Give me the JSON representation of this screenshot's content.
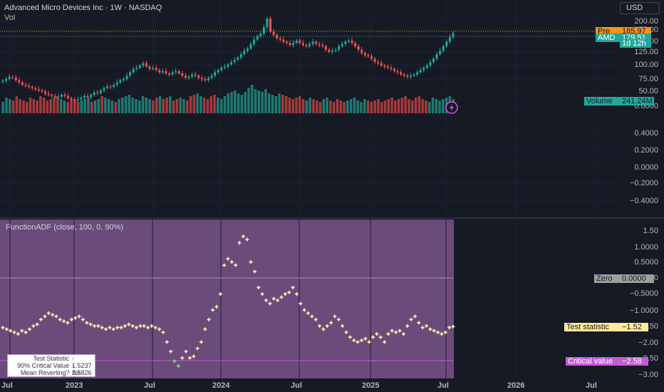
{
  "header": {
    "symbol_title": "Advanced Micro Devices Inc · 1W · NASDAQ",
    "volume_label": "Vol",
    "currency_button": "USD"
  },
  "price_tags": {
    "pre": {
      "label": "Pre",
      "value": "185.97",
      "color": "#f7931a"
    },
    "amd": {
      "label": "AMD",
      "value": "179.51",
      "countdown": "1d 12h",
      "color": "#26a69a"
    },
    "volume": {
      "label": "Volume",
      "value": "241.24M",
      "color": "#26a69a"
    }
  },
  "price_axis_labels": [
    "200.00",
    "175.00",
    "150.00",
    "125.00",
    "100.00",
    "75.00",
    "50.00",
    "0.6000",
    "0.4000",
    "0.2000",
    "0.0000",
    "−0.2000",
    "−0.4000"
  ],
  "indicator": {
    "title": "FunctionADF (close, 100, 0, 90%)",
    "background": "#6a4b7a",
    "axis_labels": [
      "1.50",
      "1.0000",
      "0.5000",
      "0.0000",
      "−0.5000",
      "−1.0000",
      "−1.50",
      "−2.00",
      "−2.50",
      "−3.00"
    ],
    "tags": {
      "zero": {
        "label": "Zero",
        "value": "0.0000",
        "color": "#9e9e9e"
      },
      "test_statistic": {
        "label": "Test statistic",
        "value": "−1.52",
        "color": "#ffeb99"
      },
      "critical_value": {
        "label": "Critical value",
        "value": "−2.58",
        "color": "#c65bd8"
      }
    },
    "table": {
      "rows": [
        {
          "label": "Test Statistic",
          "value": "- 1.5237"
        },
        {
          "label": "90% Critical Value",
          "value": "- 2.5826"
        },
        {
          "label": "Mean Reverting?",
          "value": "No"
        }
      ]
    }
  },
  "time_axis_labels": [
    "Jul",
    "2023",
    "Jul",
    "2024",
    "Jul",
    "2025",
    "Jul",
    "2026",
    "Jul"
  ],
  "chart_data": {
    "type": "candlestick",
    "price": {
      "up_color": "#26a69a",
      "down_color": "#ef5350",
      "closes": [
        95,
        98,
        102,
        101,
        96,
        92,
        88,
        86,
        84,
        82,
        80,
        78,
        76,
        72,
        70,
        68,
        66,
        67,
        70,
        68,
        64,
        62,
        60,
        62,
        65,
        68,
        66,
        70,
        74,
        73,
        78,
        82,
        85,
        84,
        88,
        92,
        96,
        98,
        104,
        110,
        116,
        118,
        122,
        126,
        120,
        116,
        118,
        114,
        110,
        112,
        108,
        106,
        110,
        112,
        108,
        104,
        100,
        102,
        106,
        104,
        100,
        98,
        96,
        100,
        104,
        110,
        114,
        118,
        120,
        124,
        128,
        132,
        136,
        142,
        148,
        152,
        160,
        168,
        174,
        178,
        190,
        205,
        182,
        176,
        170,
        168,
        164,
        162,
        158,
        162,
        166,
        162,
        158,
        156,
        160,
        164,
        160,
        158,
        156,
        150,
        146,
        148,
        150,
        156,
        160,
        164,
        166,
        162,
        156,
        150,
        144,
        140,
        138,
        134,
        128,
        126,
        122,
        120,
        118,
        116,
        112,
        110,
        106,
        104,
        102,
        104,
        106,
        110,
        114,
        118,
        122,
        128,
        134,
        142,
        148,
        156,
        164,
        172,
        179.5
      ]
    },
    "volume": {
      "up_color": "#26a69a",
      "down_color": "#ef5350",
      "relative_values": [
        0.4,
        0.55,
        0.5,
        0.45,
        0.6,
        0.5,
        0.45,
        0.4,
        0.55,
        0.5,
        0.45,
        0.6,
        0.55,
        0.45,
        0.5,
        0.55,
        0.6,
        0.5,
        0.45,
        0.4,
        0.5,
        0.45,
        0.4,
        0.45,
        0.5,
        0.55,
        0.4,
        0.45,
        0.5,
        0.6,
        0.55,
        0.5,
        0.45,
        0.4,
        0.5,
        0.55,
        0.6,
        0.65,
        0.55,
        0.5,
        0.45,
        0.6,
        0.55,
        0.5,
        0.45,
        0.55,
        0.6,
        0.5,
        0.55,
        0.6,
        0.45,
        0.5,
        0.55,
        0.5,
        0.45,
        0.6,
        0.65,
        0.7,
        0.6,
        0.55,
        0.5,
        0.6,
        0.65,
        0.55,
        0.5,
        0.6,
        0.7,
        0.75,
        0.8,
        0.7,
        0.65,
        0.75,
        0.9,
        1.0,
        0.85,
        0.8,
        0.75,
        0.85,
        0.7,
        0.65,
        0.6,
        0.7,
        0.65,
        0.6,
        0.55,
        0.5,
        0.55,
        0.6,
        0.5,
        0.45,
        0.55,
        0.5,
        0.45,
        0.4,
        0.5,
        0.55,
        0.45,
        0.4,
        0.5,
        0.45,
        0.4,
        0.45,
        0.5,
        0.55,
        0.45,
        0.4,
        0.5,
        0.45,
        0.4,
        0.45,
        0.5,
        0.4,
        0.45,
        0.5,
        0.55,
        0.45,
        0.5,
        0.55,
        0.6,
        0.5,
        0.45,
        0.55,
        0.6,
        0.5,
        0.45,
        0.4,
        0.55,
        0.5,
        0.45,
        0.5,
        0.55,
        0.6,
        0.5
      ]
    },
    "adf_series": {
      "color": "#fff3b0",
      "values": [
        -1.55,
        -1.6,
        -1.65,
        -1.7,
        -1.75,
        -1.65,
        -1.7,
        -1.6,
        -1.5,
        -1.45,
        -1.3,
        -1.2,
        -1.1,
        -1.15,
        -1.2,
        -1.3,
        -1.35,
        -1.4,
        -1.3,
        -1.25,
        -1.2,
        -1.3,
        -1.4,
        -1.45,
        -1.5,
        -1.5,
        -1.55,
        -1.6,
        -1.55,
        -1.6,
        -1.55,
        -1.55,
        -1.5,
        -1.45,
        -1.5,
        -1.55,
        -1.5,
        -1.5,
        -1.55,
        -1.5,
        -1.55,
        -1.6,
        -1.7,
        -2.0,
        -2.3,
        -2.6,
        -2.75,
        -2.5,
        -2.3,
        -2.5,
        -2.45,
        -2.2,
        -2.0,
        -1.6,
        -1.3,
        -1.0,
        -0.9,
        -0.5,
        0.4,
        0.6,
        0.5,
        0.4,
        1.1,
        1.3,
        1.2,
        0.5,
        0.2,
        -0.3,
        -0.5,
        -0.7,
        -0.8,
        -0.65,
        -0.7,
        -0.6,
        -0.5,
        -0.45,
        -0.3,
        -0.5,
        -0.8,
        -1.0,
        -1.1,
        -1.2,
        -1.3,
        -1.5,
        -1.6,
        -1.5,
        -1.4,
        -1.2,
        -1.3,
        -1.5,
        -1.7,
        -1.85,
        -1.95,
        -2.0,
        -1.95,
        -1.9,
        -2.0,
        -1.85,
        -1.75,
        -1.85,
        -2.0,
        -1.75,
        -1.65,
        -1.7,
        -1.65,
        -1.75,
        -1.5,
        -1.3,
        -1.2,
        -1.4,
        -1.55,
        -1.5,
        -1.6,
        -1.65,
        -1.7,
        -1.75,
        -1.7,
        -1.55,
        -1.52
      ],
      "zero_line": 0.0,
      "critical_value": -2.5826,
      "test_statistic": -1.5237
    }
  }
}
